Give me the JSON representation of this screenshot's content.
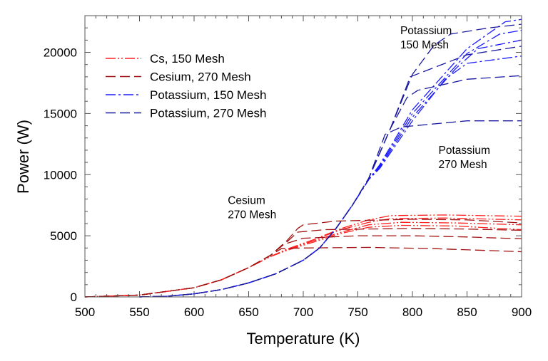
{
  "chart_data": {
    "type": "line",
    "title": "",
    "xlabel": "Temperature (K)",
    "ylabel": "Power (W)",
    "xlim": [
      500,
      900
    ],
    "ylim": [
      0,
      23000
    ],
    "xticks": [
      500,
      550,
      600,
      650,
      700,
      750,
      800,
      850,
      900
    ],
    "yticks": [
      0,
      5000,
      10000,
      15000,
      20000
    ],
    "grid": false,
    "legend_position": "top-left",
    "series": [
      {
        "name": "Cs, 150 Mesh",
        "color": "#ff2020",
        "dash": "dash-dot-dot",
        "curves": [
          [
            [
              500,
              0
            ],
            [
              550,
              150
            ],
            [
              600,
              750
            ],
            [
              625,
              1400
            ],
            [
              650,
              2400
            ],
            [
              670,
              3300
            ],
            [
              685,
              3900
            ],
            [
              710,
              4700
            ],
            [
              735,
              5600
            ],
            [
              760,
              6300
            ],
            [
              780,
              6650
            ],
            [
              830,
              6700
            ],
            [
              900,
              6600
            ]
          ],
          [
            [
              500,
              0
            ],
            [
              550,
              150
            ],
            [
              600,
              750
            ],
            [
              625,
              1400
            ],
            [
              650,
              2400
            ],
            [
              670,
              3300
            ],
            [
              685,
              3900
            ],
            [
              710,
              4700
            ],
            [
              735,
              5500
            ],
            [
              760,
              6100
            ],
            [
              780,
              6400
            ],
            [
              830,
              6450
            ],
            [
              900,
              6300
            ]
          ],
          [
            [
              500,
              0
            ],
            [
              550,
              150
            ],
            [
              600,
              750
            ],
            [
              625,
              1400
            ],
            [
              650,
              2400
            ],
            [
              670,
              3300
            ],
            [
              685,
              3850
            ],
            [
              710,
              4600
            ],
            [
              735,
              5300
            ],
            [
              760,
              5900
            ],
            [
              790,
              6100
            ],
            [
              840,
              6050
            ],
            [
              900,
              5900
            ]
          ],
          [
            [
              500,
              0
            ],
            [
              550,
              150
            ],
            [
              600,
              750
            ],
            [
              625,
              1400
            ],
            [
              650,
              2400
            ],
            [
              670,
              3300
            ],
            [
              685,
              3800
            ],
            [
              710,
              4500
            ],
            [
              735,
              5200
            ],
            [
              760,
              5700
            ],
            [
              790,
              5850
            ],
            [
              840,
              5800
            ],
            [
              900,
              5500
            ]
          ]
        ]
      },
      {
        "name": "Cesium, 270 Mesh",
        "color": "#a01010",
        "dash": "dashed",
        "curves": [
          [
            [
              500,
              0
            ],
            [
              550,
              150
            ],
            [
              600,
              750
            ],
            [
              625,
              1400
            ],
            [
              650,
              2400
            ],
            [
              670,
              3400
            ],
            [
              685,
              4600
            ],
            [
              695,
              5600
            ],
            [
              700,
              5900
            ],
            [
              730,
              6200
            ],
            [
              800,
              6350
            ],
            [
              850,
              6300
            ],
            [
              900,
              6050
            ]
          ],
          [
            [
              500,
              0
            ],
            [
              550,
              150
            ],
            [
              600,
              750
            ],
            [
              625,
              1400
            ],
            [
              650,
              2400
            ],
            [
              670,
              3400
            ],
            [
              685,
              4500
            ],
            [
              695,
              5300
            ],
            [
              720,
              5500
            ],
            [
              800,
              5600
            ],
            [
              850,
              5550
            ],
            [
              900,
              5450
            ]
          ],
          [
            [
              500,
              0
            ],
            [
              550,
              150
            ],
            [
              600,
              750
            ],
            [
              625,
              1400
            ],
            [
              650,
              2400
            ],
            [
              670,
              3400
            ],
            [
              682,
              4300
            ],
            [
              700,
              4800
            ],
            [
              750,
              5000
            ],
            [
              800,
              5000
            ],
            [
              850,
              4900
            ],
            [
              900,
              4750
            ]
          ],
          [
            [
              500,
              0
            ],
            [
              550,
              150
            ],
            [
              600,
              750
            ],
            [
              625,
              1400
            ],
            [
              650,
              2400
            ],
            [
              670,
              3400
            ],
            [
              680,
              3950
            ],
            [
              700,
              4000
            ],
            [
              760,
              4050
            ],
            [
              820,
              3950
            ],
            [
              900,
              3700
            ]
          ]
        ]
      },
      {
        "name": "Potassium, 150 Mesh",
        "color": "#1a1aff",
        "dash": "dash-dot",
        "curves": [
          [
            [
              550,
              0
            ],
            [
              575,
              60
            ],
            [
              600,
              250
            ],
            [
              625,
              600
            ],
            [
              650,
              1150
            ],
            [
              675,
              1900
            ],
            [
              700,
              3000
            ],
            [
              715,
              4000
            ],
            [
              730,
              5600
            ],
            [
              745,
              7500
            ],
            [
              760,
              9600
            ],
            [
              770,
              10800
            ],
            [
              800,
              15300
            ],
            [
              850,
              20300
            ],
            [
              885,
              22500
            ],
            [
              900,
              22700
            ]
          ],
          [
            [
              550,
              0
            ],
            [
              575,
              60
            ],
            [
              600,
              250
            ],
            [
              625,
              600
            ],
            [
              650,
              1150
            ],
            [
              675,
              1900
            ],
            [
              700,
              3000
            ],
            [
              715,
              4000
            ],
            [
              730,
              5600
            ],
            [
              745,
              7500
            ],
            [
              760,
              9600
            ],
            [
              770,
              10700
            ],
            [
              800,
              15000
            ],
            [
              850,
              19900
            ],
            [
              880,
              21500
            ],
            [
              900,
              21800
            ]
          ],
          [
            [
              550,
              0
            ],
            [
              575,
              60
            ],
            [
              600,
              250
            ],
            [
              625,
              600
            ],
            [
              650,
              1150
            ],
            [
              675,
              1900
            ],
            [
              700,
              3000
            ],
            [
              715,
              4000
            ],
            [
              730,
              5600
            ],
            [
              745,
              7500
            ],
            [
              760,
              9600
            ],
            [
              770,
              10600
            ],
            [
              800,
              14700
            ],
            [
              840,
              18700
            ],
            [
              860,
              20300
            ],
            [
              900,
              21000
            ]
          ],
          [
            [
              550,
              0
            ],
            [
              575,
              60
            ],
            [
              600,
              250
            ],
            [
              625,
              600
            ],
            [
              650,
              1150
            ],
            [
              675,
              1900
            ],
            [
              700,
              3000
            ],
            [
              715,
              4000
            ],
            [
              730,
              5600
            ],
            [
              745,
              7500
            ],
            [
              760,
              9600
            ],
            [
              770,
              10500
            ],
            [
              800,
              14400
            ],
            [
              830,
              17800
            ],
            [
              850,
              19100
            ],
            [
              900,
              19700
            ]
          ]
        ]
      },
      {
        "name": "Potassium, 270 Mesh",
        "color": "#1a1aa0",
        "dash": "dashed",
        "curves": [
          [
            [
              550,
              0
            ],
            [
              575,
              60
            ],
            [
              600,
              250
            ],
            [
              625,
              600
            ],
            [
              650,
              1150
            ],
            [
              675,
              1900
            ],
            [
              700,
              3000
            ],
            [
              715,
              4000
            ],
            [
              730,
              5600
            ],
            [
              745,
              7500
            ],
            [
              760,
              9700
            ],
            [
              775,
              13300
            ],
            [
              790,
              13900
            ],
            [
              850,
              14400
            ],
            [
              900,
              14400
            ]
          ],
          [
            [
              550,
              0
            ],
            [
              575,
              60
            ],
            [
              600,
              250
            ],
            [
              625,
              600
            ],
            [
              650,
              1150
            ],
            [
              675,
              1900
            ],
            [
              700,
              3000
            ],
            [
              715,
              4000
            ],
            [
              730,
              5600
            ],
            [
              745,
              7500
            ],
            [
              760,
              9700
            ],
            [
              780,
              13800
            ],
            [
              795,
              16300
            ],
            [
              805,
              16900
            ],
            [
              850,
              17800
            ],
            [
              900,
              18100
            ]
          ],
          [
            [
              550,
              0
            ],
            [
              575,
              60
            ],
            [
              600,
              250
            ],
            [
              625,
              600
            ],
            [
              650,
              1150
            ],
            [
              675,
              1900
            ],
            [
              700,
              3000
            ],
            [
              715,
              4000
            ],
            [
              730,
              5600
            ],
            [
              745,
              7500
            ],
            [
              760,
              9700
            ],
            [
              780,
              13800
            ],
            [
              798,
              18000
            ],
            [
              850,
              19800
            ],
            [
              900,
              20500
            ]
          ],
          [
            [
              550,
              0
            ],
            [
              575,
              60
            ],
            [
              600,
              250
            ],
            [
              625,
              600
            ],
            [
              650,
              1150
            ],
            [
              675,
              1900
            ],
            [
              700,
              3000
            ],
            [
              715,
              4000
            ],
            [
              730,
              5600
            ],
            [
              745,
              7500
            ],
            [
              760,
              9700
            ],
            [
              780,
              13800
            ],
            [
              800,
              18200
            ],
            [
              820,
              20600
            ],
            [
              835,
              21500
            ],
            [
              870,
              22000
            ],
            [
              900,
              22300
            ]
          ]
        ]
      }
    ],
    "annotations": [
      {
        "lines": [
          "Potassium",
          "150 Mesh"
        ],
        "x": 815,
        "y": 21500
      },
      {
        "lines": [
          "Potassium",
          "270 Mesh"
        ],
        "x": 850,
        "y": 11700
      },
      {
        "lines": [
          "Cesium",
          "270 Mesh"
        ],
        "x": 657,
        "y": 7600
      }
    ]
  }
}
